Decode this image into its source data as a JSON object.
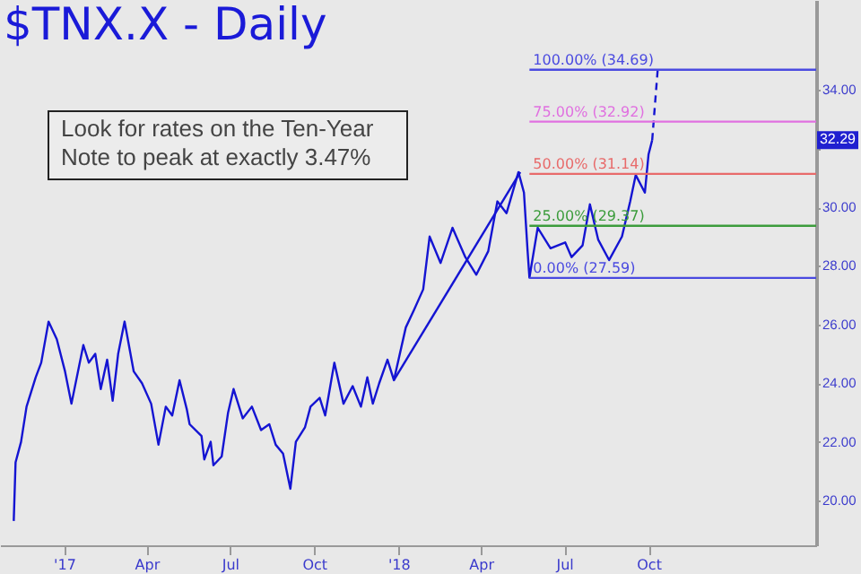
{
  "chart_data": {
    "type": "line",
    "title": "$TNX.X - Daily",
    "annotations": [
      "Look for rates on the Ten-Year\nNote to peak at exactly 3.47%",
      {
        "text": "32.29",
        "y": 32.29
      }
    ],
    "xlim": [
      "2016-10-23",
      "2019-04-02"
    ],
    "xticks": [
      {
        "value": "2017-01-01",
        "label": "'17"
      },
      {
        "value": "2017-04-01",
        "label": "Apr"
      },
      {
        "value": "2017-07-01",
        "label": "Jul"
      },
      {
        "value": "2017-10-01",
        "label": "Oct"
      },
      {
        "value": "2018-01-01",
        "label": "'18"
      },
      {
        "value": "2018-04-01",
        "label": "Apr"
      },
      {
        "value": "2018-07-01",
        "label": "Jul"
      },
      {
        "value": "2018-10-01",
        "label": "Oct"
      }
    ],
    "ylim": [
      18.47,
      37.07
    ],
    "yticks": [
      {
        "value": 20,
        "label": "20.00"
      },
      {
        "value": 22,
        "label": "22.00"
      },
      {
        "value": 24,
        "label": "24.00"
      },
      {
        "value": 26,
        "label": "26.00"
      },
      {
        "value": 28,
        "label": "28.00"
      },
      {
        "value": 30,
        "label": "30.00"
      },
      {
        "value": 32,
        "label": null
      },
      {
        "value": 34,
        "label": "34.00"
      }
    ],
    "grid": false,
    "series": [
      {
        "color": "#1414d2",
        "x": [
          "2016-11-07",
          "2016-11-09",
          "2016-11-15",
          "2016-11-21",
          "2016-12-01",
          "2016-12-07",
          "2016-12-15",
          "2016-12-24",
          "2017-01-02",
          "2017-01-09",
          "2017-01-22",
          "2017-01-28",
          "2017-02-04",
          "2017-02-10",
          "2017-02-17",
          "2017-02-23",
          "2017-03-01",
          "2017-03-08",
          "2017-03-18",
          "2017-03-27",
          "2017-04-06",
          "2017-04-14",
          "2017-04-22",
          "2017-04-29",
          "2017-05-07",
          "2017-05-15",
          "2017-05-18",
          "2017-05-31",
          "2017-06-03",
          "2017-06-10",
          "2017-06-13",
          "2017-06-22",
          "2017-06-29",
          "2017-07-05",
          "2017-07-15",
          "2017-07-25",
          "2017-08-04",
          "2017-08-13",
          "2017-08-20",
          "2017-08-28",
          "2017-09-05",
          "2017-09-11",
          "2017-09-21",
          "2017-09-27",
          "2017-10-07",
          "2017-10-13",
          "2017-10-23",
          "2017-11-02",
          "2017-11-12",
          "2017-11-21",
          "2017-11-28",
          "2017-12-04",
          "2017-12-11",
          "2017-12-20",
          "2017-12-27",
          "2018-01-09",
          "2018-01-18",
          "2018-01-28",
          "2018-02-04",
          "2018-02-16",
          "2018-03-01",
          "2018-03-15",
          "2018-03-27",
          "2018-04-09",
          "2018-04-19",
          "2018-04-29",
          "2018-05-12",
          "2018-05-18",
          "2018-05-22",
          "2018-05-24",
          "2018-06-02",
          "2018-06-16",
          "2018-07-02",
          "2018-07-09",
          "2018-07-21",
          "2018-07-29",
          "2018-08-07",
          "2018-08-19",
          "2018-09-02",
          "2018-09-11",
          "2018-09-17",
          "2018-09-27",
          "2018-10-01",
          "2018-10-05"
        ],
        "values": [
          19.3,
          21.3,
          22.0,
          23.2,
          24.2,
          24.7,
          26.1,
          25.5,
          24.4,
          23.3,
          25.3,
          24.7,
          25.0,
          23.8,
          24.8,
          23.4,
          25.0,
          26.1,
          24.4,
          24.0,
          23.3,
          21.9,
          23.2,
          22.9,
          24.1,
          23.1,
          22.6,
          22.2,
          21.4,
          22.0,
          21.2,
          21.5,
          23.0,
          23.8,
          22.8,
          23.2,
          22.4,
          22.6,
          21.9,
          21.6,
          20.4,
          22.0,
          22.5,
          23.2,
          23.5,
          22.9,
          24.7,
          23.3,
          23.9,
          23.2,
          24.2,
          23.3,
          24.0,
          24.8,
          24.1,
          25.9,
          26.5,
          27.2,
          29.0,
          28.1,
          29.3,
          28.3,
          27.7,
          28.5,
          30.2,
          29.8,
          31.2,
          30.5,
          28.5,
          27.6,
          29.3,
          28.6,
          28.8,
          28.3,
          28.7,
          30.1,
          28.9,
          28.2,
          29.0,
          30.2,
          31.1,
          30.5,
          31.8,
          32.29
        ]
      },
      {
        "color": "#1414d2",
        "line_style": "dashed",
        "x": [
          "2018-10-05",
          "2018-10-11"
        ],
        "values": [
          32.29,
          34.69
        ]
      },
      {
        "color": "#1414d2",
        "x": [
          "2017-12-27",
          "2018-05-14"
        ],
        "values": [
          24.1,
          31.2
        ]
      },
      {
        "name": "100.00% (34.69)",
        "color": "#4a4ae0",
        "x": [
          "2018-05-24",
          "2019-04-02"
        ],
        "values": [
          34.69,
          34.69
        ]
      },
      {
        "name": "75.00% (32.92)",
        "color": "#e070e0",
        "x": [
          "2018-05-24",
          "2019-04-02"
        ],
        "values": [
          32.92,
          32.92
        ]
      },
      {
        "name": "50.00% (31.14)",
        "color": "#e86a6a",
        "x": [
          "2018-05-24",
          "2019-04-02"
        ],
        "values": [
          31.14,
          31.14
        ]
      },
      {
        "name": "25.00% (29.37)",
        "color": "#3c9c3c",
        "x": [
          "2018-05-24",
          "2019-04-02"
        ],
        "values": [
          29.37,
          29.37
        ]
      },
      {
        "name": "0.00% (27.59)",
        "color": "#4a4ae0",
        "x": [
          "2018-05-24",
          "2019-04-02"
        ],
        "values": [
          27.59,
          27.59
        ]
      }
    ]
  }
}
